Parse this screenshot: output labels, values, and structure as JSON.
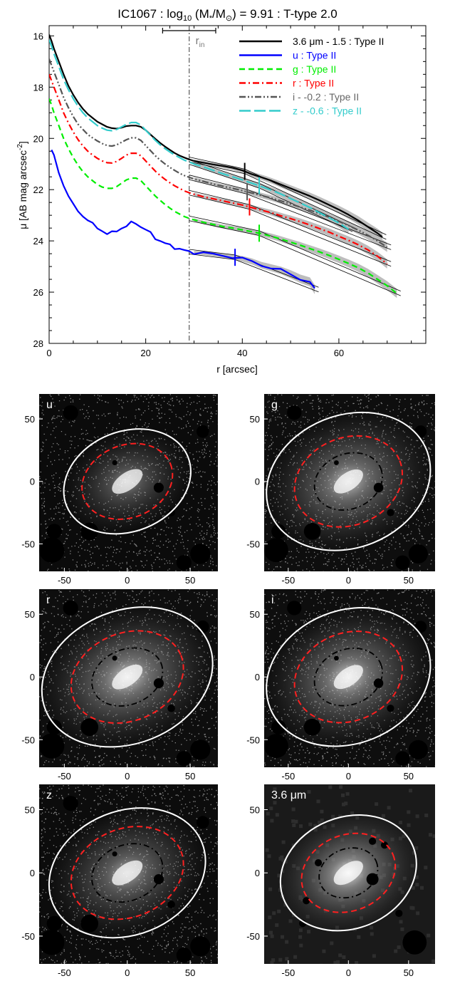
{
  "chart_data": [
    {
      "type": "line",
      "title": "IC1067 : log10 (M*/M⊙) = 9.91 : T-type 2.0",
      "title_parts": {
        "a": "IC1067 : log",
        "sub": "10",
        "b": " (M",
        "star": "*",
        "slash": "/M",
        "sun": "⊙",
        "c": ") = 9.91 : T-type 2.0"
      },
      "xlabel": "r [arcsec]",
      "ylabel": "μ [AB mag arcsec⁻²]",
      "ylabel_parts": {
        "a": "μ [AB mag arcsec",
        "sup": "-2",
        "b": "]"
      },
      "xlim": [
        0,
        78
      ],
      "ylim": [
        28,
        15.6
      ],
      "y_inverted": true,
      "x_ticks": [
        0,
        20,
        40,
        60
      ],
      "y_ticks": [
        16,
        18,
        20,
        22,
        24,
        26,
        28
      ],
      "r_in": 29,
      "r_in_label": "r",
      "r_in_sub": "in",
      "r_in_range": [
        23.5,
        34.5
      ],
      "legend_position": "top-right",
      "series": [
        {
          "name": "3.6 μm - 1.5 : Type II",
          "color": "#000000",
          "dash": "solid",
          "break_r": 40.5,
          "x": [
            0,
            0.5,
            1,
            2,
            3,
            4,
            5,
            6,
            7,
            8,
            9,
            10,
            11,
            12,
            13,
            14,
            15,
            16,
            17,
            18,
            19,
            20,
            21,
            22,
            23,
            24,
            25,
            26,
            27,
            28,
            29,
            30,
            32,
            34,
            36,
            38,
            40,
            42,
            44,
            46,
            48,
            50,
            52,
            54,
            56,
            58,
            60,
            62,
            64,
            66,
            68,
            69
          ],
          "y": [
            15.95,
            16.2,
            16.5,
            17.0,
            17.5,
            17.95,
            18.3,
            18.6,
            18.85,
            19.05,
            19.2,
            19.35,
            19.45,
            19.55,
            19.6,
            19.62,
            19.58,
            19.52,
            19.5,
            19.5,
            19.55,
            19.68,
            19.85,
            20.02,
            20.18,
            20.32,
            20.45,
            20.57,
            20.67,
            20.75,
            20.82,
            20.88,
            20.95,
            21.02,
            21.08,
            21.15,
            21.25,
            21.4,
            21.52,
            21.65,
            21.8,
            21.95,
            22.1,
            22.25,
            22.42,
            22.6,
            22.78,
            22.98,
            23.2,
            23.45,
            23.7,
            23.85
          ]
        },
        {
          "name": "u : Type II",
          "color": "#0000ff",
          "dash": "solid",
          "break_r": 38.5,
          "x": [
            0.5,
            1,
            2,
            3,
            4,
            5,
            6,
            7,
            8,
            9,
            10,
            11,
            12,
            13,
            14,
            15,
            16,
            17,
            18,
            19,
            20,
            21,
            22,
            23,
            24,
            25,
            26,
            27,
            28,
            29,
            30,
            32,
            34,
            36,
            38,
            40,
            42,
            44,
            46,
            48,
            50,
            52,
            54,
            55
          ],
          "y": [
            20.45,
            20.65,
            21.35,
            21.85,
            22.25,
            22.55,
            22.85,
            23.05,
            23.2,
            23.35,
            23.52,
            23.62,
            23.68,
            23.7,
            23.62,
            23.5,
            23.4,
            23.32,
            23.3,
            23.45,
            23.55,
            23.72,
            23.88,
            24.0,
            24.1,
            24.18,
            24.25,
            24.32,
            24.38,
            24.42,
            24.45,
            24.48,
            24.52,
            24.58,
            24.62,
            24.7,
            24.8,
            24.95,
            25.05,
            25.15,
            25.3,
            25.48,
            25.6,
            25.9
          ]
        },
        {
          "name": "g : Type II",
          "color": "#00ee00",
          "dash": "dash",
          "break_r": 43.5,
          "x": [
            0,
            0.5,
            1,
            2,
            3,
            4,
            5,
            6,
            7,
            8,
            9,
            10,
            11,
            12,
            13,
            14,
            15,
            16,
            17,
            18,
            19,
            20,
            21,
            22,
            23,
            24,
            25,
            26,
            27,
            28,
            29,
            30,
            32,
            34,
            36,
            38,
            40,
            42,
            44,
            46,
            48,
            50,
            52,
            54,
            56,
            58,
            60,
            62,
            64,
            66,
            68,
            70,
            72
          ],
          "y": [
            18.45,
            18.7,
            19.0,
            19.5,
            20.0,
            20.4,
            20.75,
            21.05,
            21.3,
            21.5,
            21.65,
            21.8,
            21.9,
            21.95,
            21.95,
            21.88,
            21.75,
            21.62,
            21.55,
            21.55,
            21.65,
            21.85,
            22.05,
            22.25,
            22.42,
            22.58,
            22.72,
            22.85,
            22.95,
            23.05,
            23.12,
            23.18,
            23.28,
            23.36,
            23.44,
            23.5,
            23.57,
            23.64,
            23.72,
            23.82,
            23.93,
            24.05,
            24.17,
            24.3,
            24.43,
            24.57,
            24.72,
            24.88,
            25.05,
            25.25,
            25.5,
            25.75,
            26.05
          ]
        },
        {
          "name": "r : Type II",
          "color": "#ff0000",
          "dash": "dashdot",
          "break_r": 41.5,
          "x": [
            0,
            0.5,
            1,
            2,
            3,
            4,
            5,
            6,
            7,
            8,
            9,
            10,
            11,
            12,
            13,
            14,
            15,
            16,
            17,
            18,
            19,
            20,
            21,
            22,
            23,
            24,
            25,
            26,
            27,
            28,
            29,
            30,
            32,
            34,
            36,
            38,
            40,
            42,
            44,
            46,
            48,
            50,
            52,
            54,
            56,
            58,
            60,
            62,
            64,
            66,
            68,
            70
          ],
          "y": [
            17.5,
            17.75,
            18.0,
            18.5,
            19.0,
            19.4,
            19.75,
            20.05,
            20.3,
            20.5,
            20.65,
            20.78,
            20.88,
            20.95,
            20.96,
            20.9,
            20.78,
            20.65,
            20.58,
            20.58,
            20.68,
            20.88,
            21.08,
            21.28,
            21.45,
            21.6,
            21.73,
            21.85,
            21.95,
            22.05,
            22.12,
            22.18,
            22.28,
            22.36,
            22.44,
            22.52,
            22.6,
            22.7,
            22.8,
            22.9,
            23.02,
            23.13,
            23.25,
            23.38,
            23.52,
            23.66,
            23.82,
            23.98,
            24.15,
            24.35,
            24.6,
            24.9
          ]
        },
        {
          "name": "i - -0.2 : Type II",
          "color": "#555555",
          "dash": "dashdotdot",
          "break_r": 41.0,
          "x": [
            0,
            0.5,
            1,
            2,
            3,
            4,
            5,
            6,
            7,
            8,
            9,
            10,
            11,
            12,
            13,
            14,
            15,
            16,
            17,
            18,
            19,
            20,
            21,
            22,
            23,
            24,
            25,
            26,
            27,
            28,
            29,
            30,
            32,
            34,
            36,
            38,
            40,
            42,
            44,
            46,
            48,
            50,
            52,
            54,
            56,
            58,
            60,
            62,
            64,
            66,
            68,
            70
          ],
          "y": [
            16.9,
            17.15,
            17.4,
            17.9,
            18.4,
            18.8,
            19.15,
            19.45,
            19.65,
            19.85,
            19.98,
            20.1,
            20.2,
            20.28,
            20.3,
            20.25,
            20.15,
            20.05,
            19.98,
            19.98,
            20.08,
            20.28,
            20.48,
            20.68,
            20.85,
            21.0,
            21.13,
            21.25,
            21.36,
            21.45,
            21.52,
            21.58,
            21.68,
            21.78,
            21.87,
            21.95,
            22.04,
            22.13,
            22.23,
            22.33,
            22.44,
            22.56,
            22.68,
            22.8,
            22.94,
            23.08,
            23.24,
            23.4,
            23.58,
            23.78,
            24.0,
            24.25
          ]
        },
        {
          "name": "z - -0.6 : Type II",
          "color": "#33cccc",
          "dash": "longdash",
          "break_r": 43.5,
          "x": [
            0,
            0.5,
            1,
            2,
            3,
            4,
            5,
            6,
            7,
            8,
            9,
            10,
            11,
            12,
            13,
            14,
            15,
            16,
            17,
            18,
            19,
            20,
            21,
            22,
            23,
            24,
            25,
            26,
            27,
            28,
            29,
            30,
            32,
            34,
            36,
            38,
            40,
            42,
            44,
            46,
            48,
            50,
            52,
            54,
            56,
            58,
            60,
            62
          ],
          "y": [
            16.15,
            16.4,
            16.7,
            17.2,
            17.7,
            18.1,
            18.45,
            18.75,
            19.0,
            19.2,
            19.35,
            19.5,
            19.6,
            19.68,
            19.7,
            19.65,
            19.55,
            19.45,
            19.38,
            19.38,
            19.48,
            19.68,
            19.88,
            20.08,
            20.25,
            20.4,
            20.53,
            20.65,
            20.75,
            20.85,
            20.92,
            21.0,
            21.12,
            21.25,
            21.38,
            21.5,
            21.62,
            21.75,
            21.88,
            22.02,
            22.17,
            22.35,
            22.52,
            22.7,
            22.9,
            23.1,
            23.3,
            23.55
          ]
        }
      ]
    },
    {
      "type": "image-panels",
      "x_ticks": [
        -50,
        0,
        50
      ],
      "y_ticks": [
        50,
        0,
        -50
      ],
      "xlim": [
        -70,
        72
      ],
      "ylim": [
        -72,
        70
      ],
      "panels": [
        {
          "label": "u",
          "outer": [
            52,
            40
          ],
          "mid": [
            37,
            29
          ],
          "inner": null,
          "bg": "#0b0b0b",
          "glow": 0.55
        },
        {
          "label": "g",
          "outer": [
            70,
            53
          ],
          "mid": [
            46,
            35
          ],
          "inner": [
            29,
            22
          ],
          "bg": "#0e0e0e",
          "glow": 0.75
        },
        {
          "label": "r",
          "outer": [
            70,
            53
          ],
          "mid": [
            46,
            35
          ],
          "inner": [
            29,
            22
          ],
          "bg": "#0e0e0e",
          "glow": 0.8
        },
        {
          "label": "i",
          "outer": [
            70,
            53
          ],
          "mid": [
            46,
            35
          ],
          "inner": [
            29,
            22
          ],
          "bg": "#0e0e0e",
          "glow": 0.8
        },
        {
          "label": "z",
          "outer": [
            64,
            49
          ],
          "mid": [
            46,
            35
          ],
          "inner": [
            29,
            22
          ],
          "bg": "#0c0c0c",
          "glow": 0.65
        },
        {
          "label": "3.6 μm",
          "outer": [
            58,
            44
          ],
          "mid": [
            40,
            30
          ],
          "inner": [
            25,
            19
          ],
          "bg": "#1a1a1a",
          "glow": 0.9
        }
      ]
    }
  ]
}
